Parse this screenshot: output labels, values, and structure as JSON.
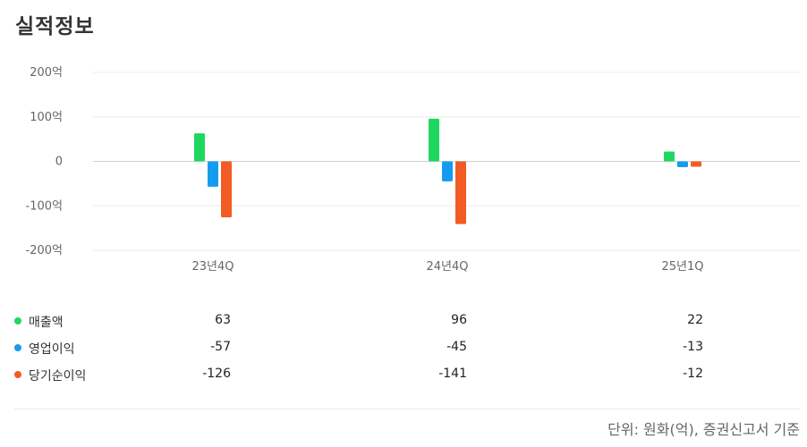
{
  "page": {
    "title": "실적정보",
    "footnote": "단위: 원화(억), 증권신고서 기준"
  },
  "legend": [
    {
      "label": "매출액",
      "color": "#1ed760"
    },
    {
      "label": "영업이익",
      "color": "#159cf0"
    },
    {
      "label": "당기순이익",
      "color": "#f35b24"
    }
  ],
  "chart_data": {
    "type": "bar",
    "categories": [
      "23년4Q",
      "24년4Q",
      "25년1Q"
    ],
    "series": [
      {
        "name": "매출액",
        "values": [
          63,
          96,
          22
        ],
        "color": "#1ed760"
      },
      {
        "name": "영업이익",
        "values": [
          -57,
          -45,
          -13
        ],
        "color": "#159cf0"
      },
      {
        "name": "당기순이익",
        "values": [
          -126,
          -141,
          -12
        ],
        "color": "#f35b24"
      }
    ],
    "ylim": [
      -200,
      200
    ],
    "yticks": [
      200,
      100,
      0,
      -100,
      -200
    ],
    "ytick_labels": [
      "200억",
      "100억",
      "0",
      "-100억",
      "-200억"
    ],
    "grid": true
  },
  "table": {
    "rows": [
      {
        "label": "매출액",
        "values": [
          "63",
          "96",
          "22"
        ]
      },
      {
        "label": "영업이익",
        "values": [
          "-57",
          "-45",
          "-13"
        ]
      },
      {
        "label": "당기순이익",
        "values": [
          "-126",
          "-141",
          "-12"
        ]
      }
    ]
  }
}
